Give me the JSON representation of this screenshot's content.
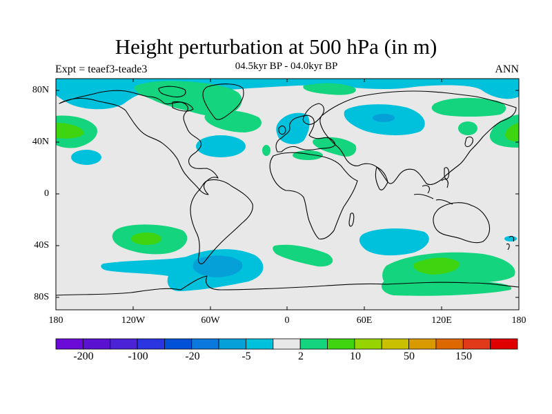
{
  "title": "Height perturbation at 500 hPa (in m)",
  "subtitle": "04.5kyr BP - 04.0kyr BP",
  "left_label": "Expt = teaef3-teade3",
  "right_label": "ANN",
  "chart_data": {
    "type": "heatmap",
    "projection": "cylindrical-equidistant",
    "lon_range": [
      -180,
      180
    ],
    "lat_range": [
      -90,
      90
    ],
    "lat_ticks": [
      "80N",
      "40N",
      "0",
      "40S",
      "80S"
    ],
    "lon_ticks": [
      "180",
      "120W",
      "60W",
      "0",
      "60E",
      "120E",
      "180"
    ],
    "colorbar": {
      "labels": [
        "-200",
        "-100",
        "-20",
        "-5",
        "2",
        "10",
        "50",
        "150"
      ],
      "colors": [
        "#6a0bd8",
        "#5a12d0",
        "#4b22d6",
        "#2a34e0",
        "#0050d8",
        "#0a78dc",
        "#06a0d8",
        "#00c1dc",
        "#e8e8e8",
        "#14d47e",
        "#3ed410",
        "#96d400",
        "#c8c000",
        "#d89a00",
        "#de6800",
        "#e03a1a",
        "#e00000"
      ]
    },
    "anomalies": [
      {
        "region": "arctic-canada-greenland",
        "lon": -65,
        "lat": 72,
        "sign": "positive",
        "level": "2 to 10"
      },
      {
        "region": "arctic-alaska",
        "lon": -150,
        "lat": 72,
        "sign": "negative",
        "level": "-5 to -2"
      },
      {
        "region": "north-pacific-east",
        "lon": -165,
        "lat": 47,
        "sign": "positive",
        "level": "10 to 50"
      },
      {
        "region": "north-pacific-west",
        "lon": 170,
        "lat": 47,
        "sign": "positive",
        "level": "10 to 50"
      },
      {
        "region": "north-atlantic",
        "lon": -35,
        "lat": 38,
        "sign": "negative",
        "level": "-5 to -2"
      },
      {
        "region": "northern-europe",
        "lon": 15,
        "lat": 58,
        "sign": "negative",
        "level": "-5 to -2"
      },
      {
        "region": "mediterranean",
        "lon": 25,
        "lat": 36,
        "sign": "positive",
        "level": "2 to 10"
      },
      {
        "region": "siberia",
        "lon": 75,
        "lat": 60,
        "sign": "negative",
        "level": "-20 to -5"
      },
      {
        "region": "south-pacific",
        "lon": -125,
        "lat": -35,
        "sign": "positive",
        "level": "10 to 50"
      },
      {
        "region": "southern-ocean-atlantic",
        "lon": -55,
        "lat": -55,
        "sign": "negative",
        "level": "-20 to -5"
      },
      {
        "region": "south-indian-ocean",
        "lon": 95,
        "lat": -38,
        "sign": "negative",
        "level": "-5 to -2"
      },
      {
        "region": "southern-ocean-indian",
        "lon": 120,
        "lat": -57,
        "sign": "positive",
        "level": "10 to 50"
      }
    ]
  }
}
